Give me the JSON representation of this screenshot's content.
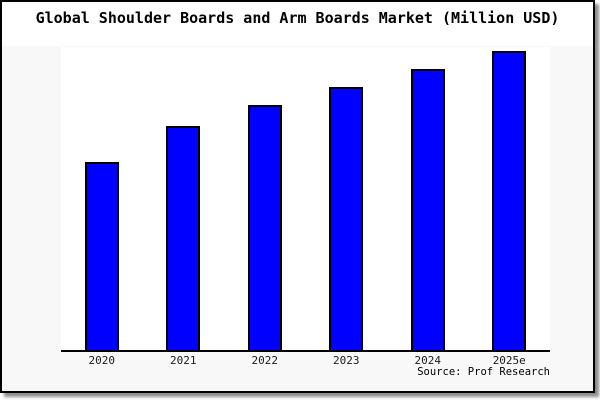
{
  "chart_data": {
    "type": "bar",
    "title": "Global Shoulder Boards and Arm Boards Market (Million USD)",
    "categories": [
      "2020",
      "2021",
      "2022",
      "2023",
      "2024",
      "2025e"
    ],
    "values": [
      63,
      75,
      82,
      88,
      94,
      100
    ],
    "value_scale_note": "no y-axis labels are visible; values are relative bar heights indexed to 2025e = 100",
    "xlabel": "",
    "ylabel": "",
    "ylim": [
      0,
      100
    ],
    "grid": false,
    "y_axis_visible": false,
    "legend": null,
    "source": "Source: Prof Research",
    "colors": {
      "bar_fill": "#0000ff",
      "bar_border": "#000000",
      "plot_background": "#ffffff",
      "chart_background": "#f8f8f8",
      "axis_line": "#000000"
    }
  }
}
